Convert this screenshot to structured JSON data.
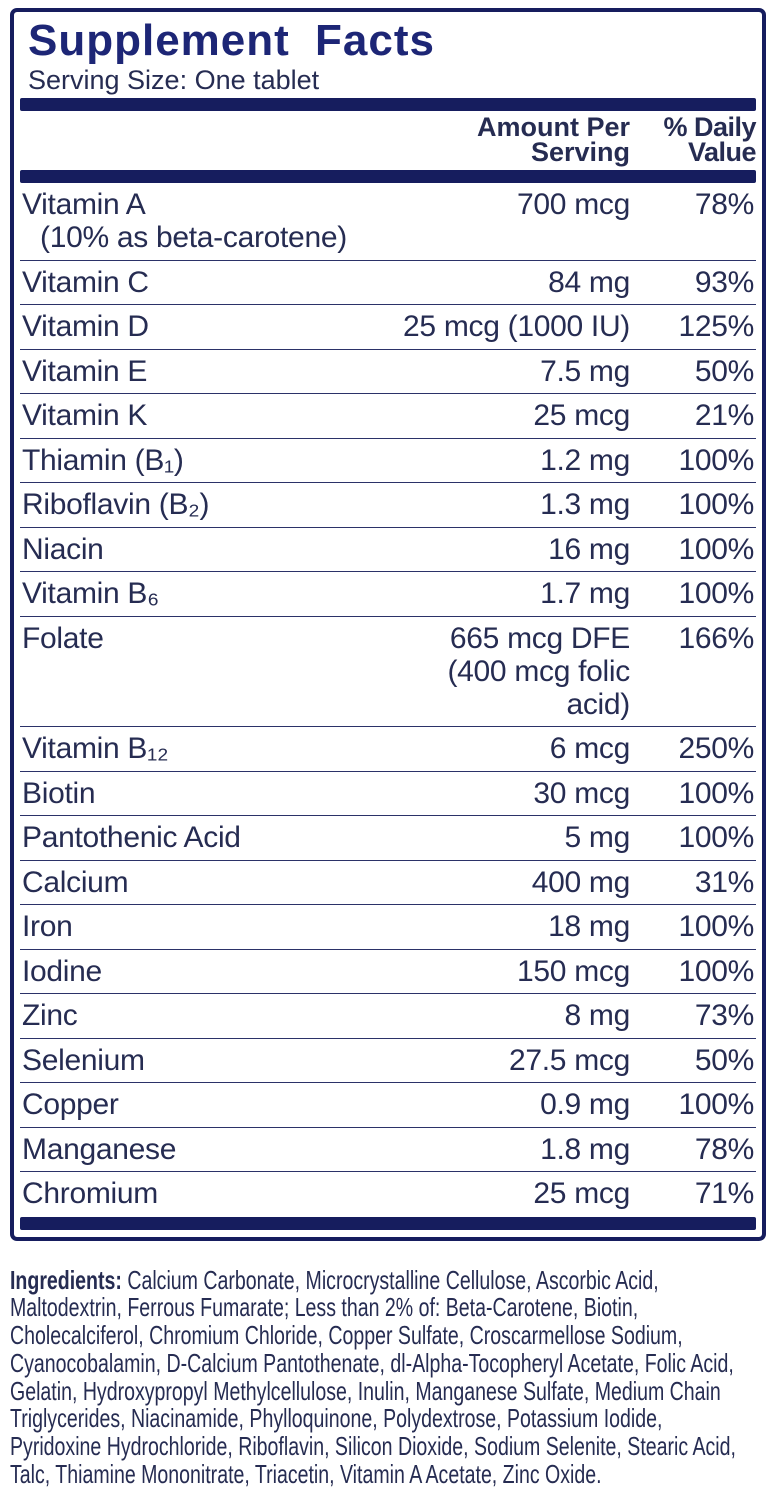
{
  "label": {
    "title": "Supplement Facts",
    "serving_size": "Serving Size: One tablet",
    "columns": {
      "amount_header": "Amount Per\nServing",
      "daily_header": "% Daily\nValue"
    },
    "rows": [
      {
        "name": "Vitamin A",
        "note": "(10% as beta-carotene)",
        "amount": "700 mcg",
        "dv": "78%"
      },
      {
        "name": "Vitamin C",
        "amount": "84 mg",
        "dv": "93%"
      },
      {
        "name": "Vitamin D",
        "amount": "25 mcg (1000 IU)",
        "dv": "125%"
      },
      {
        "name": "Vitamin E",
        "amount": "7.5 mg",
        "dv": "50%"
      },
      {
        "name": "Vitamin K",
        "amount": "25 mcg",
        "dv": "21%"
      },
      {
        "name": "Thiamin (B₁)",
        "amount": "1.2 mg",
        "dv": "100%"
      },
      {
        "name": "Riboflavin (B₂)",
        "amount": "1.3 mg",
        "dv": "100%"
      },
      {
        "name": "Niacin",
        "amount": "16 mg",
        "dv": "100%"
      },
      {
        "name": "Vitamin B₆",
        "amount": "1.7 mg",
        "dv": "100%"
      },
      {
        "name": "Folate",
        "amount": "665 mcg DFE",
        "amount_note": "(400 mcg folic acid)",
        "dv": "166%"
      },
      {
        "name": "Vitamin B₁₂",
        "amount": "6 mcg",
        "dv": "250%"
      },
      {
        "name": "Biotin",
        "amount": "30 mcg",
        "dv": "100%"
      },
      {
        "name": "Pantothenic Acid",
        "amount": "5 mg",
        "dv": "100%"
      },
      {
        "name": "Calcium",
        "amount": "400 mg",
        "dv": "31%"
      },
      {
        "name": "Iron",
        "amount": "18 mg",
        "dv": "100%"
      },
      {
        "name": "Iodine",
        "amount": "150 mcg",
        "dv": "100%"
      },
      {
        "name": "Zinc",
        "amount": "8 mg",
        "dv": "73%"
      },
      {
        "name": "Selenium",
        "amount": "27.5 mcg",
        "dv": "50%"
      },
      {
        "name": "Copper",
        "amount": "0.9 mg",
        "dv": "100%"
      },
      {
        "name": "Manganese",
        "amount": "1.8 mg",
        "dv": "78%"
      },
      {
        "name": "Chromium",
        "amount": "25 mcg",
        "dv": "71%"
      }
    ],
    "ingredients_label": "Ingredients:",
    "ingredients_text": " Calcium Carbonate, Microcrystalline Cellulose, Ascorbic Acid, Maltodextrin, Ferrous Fumarate; Less than 2% of: Beta-Carotene, Biotin, Cholecalciferol, Chromium Chloride, Copper Sulfate, Croscarmellose Sodium, Cyanocobalamin, D-Calcium Pantothenate, dl-Alpha-Tocopheryl Acetate, Folic Acid, Gelatin, Hydroxypropyl Methylcellulose, Inulin, Manganese Sulfate, Medium Chain Triglycerides, Niacinamide, Phylloquinone, Polydextrose, Potassium Iodide, Pyridoxine Hydrochloride, Riboflavin, Silicon Dioxide, Sodium Selenite, Stearic Acid, Talc, Thiamine Mononitrate, Triacetin, Vitamin A Acetate, Zinc Oxide."
  },
  "colors": {
    "navy_bar": "#161d5e",
    "title_navy": "#1d2676",
    "text_ink": "#262c52"
  }
}
